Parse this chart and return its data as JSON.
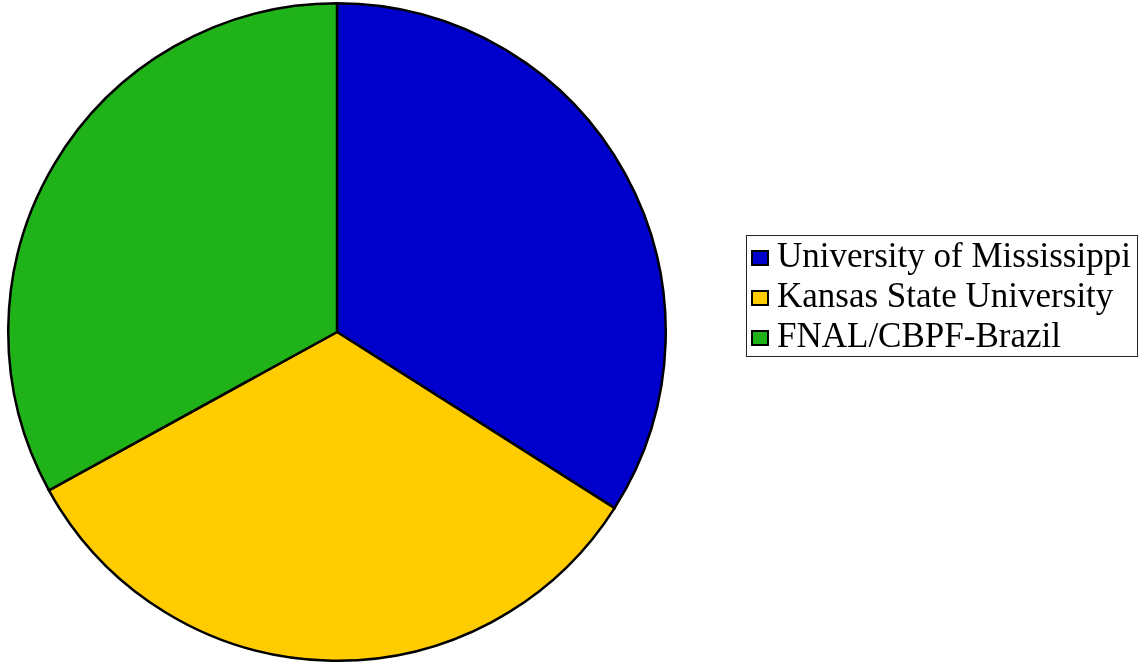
{
  "chart_data": {
    "type": "pie",
    "categories": [
      "University of Mississippi",
      "Kansas State University",
      "FNAL/CBPF-Brazil"
    ],
    "values": [
      34,
      33,
      33
    ],
    "colors": [
      "#0000cc",
      "#ffcc00",
      "#20b219"
    ],
    "legend": "right"
  }
}
